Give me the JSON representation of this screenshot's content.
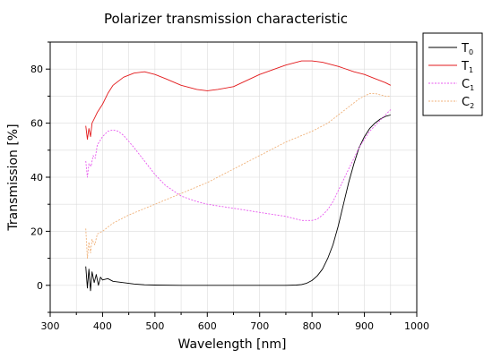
{
  "chart_data": {
    "type": "line",
    "title": "Polarizer transmission characteristic",
    "xlabel": "Wavelength [nm]",
    "ylabel": "Transmission [%]",
    "xlim": [
      300,
      1000
    ],
    "ylim": [
      -10,
      90
    ],
    "xticks": [
      300,
      400,
      500,
      600,
      700,
      800,
      900,
      1000
    ],
    "yticks": [
      0,
      20,
      40,
      60,
      80
    ],
    "grid": true,
    "legend_position": "top-right-outside",
    "series": [
      {
        "name": "T",
        "subscript": "0",
        "color": "#000000",
        "dash": "solid",
        "x": [
          368,
          371,
          374,
          377,
          380,
          384,
          388,
          392,
          396,
          400,
          410,
          420,
          440,
          460,
          480,
          500,
          550,
          600,
          650,
          700,
          750,
          770,
          780,
          790,
          800,
          810,
          820,
          830,
          840,
          850,
          860,
          870,
          880,
          890,
          900,
          910,
          920,
          930,
          940,
          950
        ],
        "y": [
          7,
          -1,
          6,
          -2,
          5,
          1,
          4,
          0,
          3,
          2,
          2.5,
          1.5,
          1,
          0.5,
          0.2,
          0.1,
          0,
          0,
          0,
          0,
          0,
          0.1,
          0.3,
          0.8,
          1.8,
          3.5,
          6,
          10,
          15,
          22,
          30,
          38,
          45,
          51,
          55,
          58,
          60,
          61.5,
          62.5,
          63
        ]
      },
      {
        "name": "T",
        "subscript": "1",
        "color": "#e31a1c",
        "dash": "solid",
        "x": [
          368,
          371,
          374,
          377,
          380,
          385,
          390,
          400,
          410,
          420,
          440,
          460,
          480,
          500,
          520,
          550,
          580,
          600,
          620,
          650,
          700,
          750,
          780,
          800,
          820,
          850,
          880,
          900,
          920,
          940,
          950
        ],
        "y": [
          59,
          54,
          58,
          55,
          60,
          62,
          64,
          67,
          71,
          74,
          77,
          78.5,
          79,
          78,
          76.5,
          74,
          72.5,
          72,
          72.5,
          73.5,
          78,
          81.5,
          83,
          83,
          82.5,
          81,
          79,
          78,
          76.5,
          75,
          74
        ]
      },
      {
        "name": "C",
        "subscript": "1",
        "color": "#e85aef",
        "dash": "2,1.5",
        "x": [
          368,
          371,
          374,
          378,
          382,
          386,
          390,
          400,
          410,
          420,
          430,
          440,
          460,
          480,
          500,
          520,
          550,
          580,
          600,
          650,
          700,
          750,
          780,
          800,
          810,
          820,
          830,
          840,
          850,
          860,
          870,
          880,
          890,
          900,
          910,
          920,
          930,
          940,
          950
        ],
        "y": [
          46,
          40,
          45,
          44,
          48,
          47,
          52,
          55,
          57,
          57.5,
          57,
          55.5,
          51,
          46,
          41,
          37,
          33,
          31,
          30,
          28.5,
          27,
          25.5,
          24,
          24,
          24.5,
          26,
          28,
          31,
          35,
          39,
          43,
          47,
          51,
          54,
          57,
          59,
          61,
          63,
          65
        ]
      },
      {
        "name": "C",
        "subscript": "2",
        "color": "#f0b27a",
        "dash": "2,1.5",
        "x": [
          368,
          371,
          374,
          377,
          380,
          385,
          390,
          400,
          420,
          450,
          500,
          550,
          600,
          650,
          700,
          750,
          800,
          830,
          850,
          870,
          890,
          900,
          910,
          920,
          930,
          940,
          950
        ],
        "y": [
          21,
          10,
          16,
          12,
          17,
          15,
          19,
          20,
          23,
          26,
          30,
          34,
          38,
          43,
          48,
          53,
          57,
          60,
          63,
          66,
          69,
          70,
          71,
          71,
          70.5,
          70,
          70
        ]
      }
    ]
  }
}
